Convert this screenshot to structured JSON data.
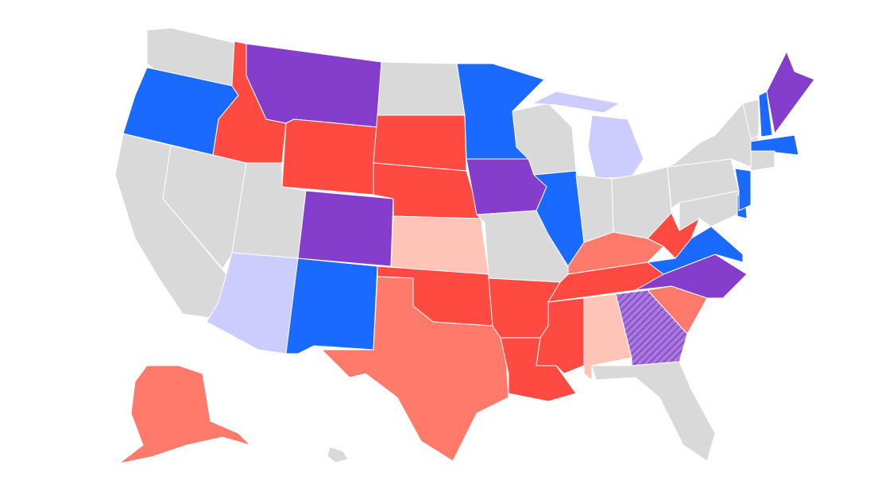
{
  "colors": {
    "blue": "#1a6aff",
    "red": "#ff4a42",
    "salmon": "#ff7a6a",
    "light_salmon": "#ffc4b8",
    "purple": "#853ecc",
    "light_purple": "#ccccff",
    "gray": "#d9d9d9"
  },
  "states": [
    {
      "id": "WA",
      "fill": "gray"
    },
    {
      "id": "OR",
      "fill": "blue"
    },
    {
      "id": "CA",
      "fill": "gray"
    },
    {
      "id": "NV",
      "fill": "gray"
    },
    {
      "id": "ID",
      "fill": "red"
    },
    {
      "id": "MT",
      "fill": "purple"
    },
    {
      "id": "WY",
      "fill": "red"
    },
    {
      "id": "UT",
      "fill": "gray"
    },
    {
      "id": "AZ",
      "fill": "light_purple"
    },
    {
      "id": "CO",
      "fill": "purple"
    },
    {
      "id": "NM",
      "fill": "blue"
    },
    {
      "id": "ND",
      "fill": "gray"
    },
    {
      "id": "SD",
      "fill": "red"
    },
    {
      "id": "NE",
      "fill": "red"
    },
    {
      "id": "KS",
      "fill": "light_salmon"
    },
    {
      "id": "OK",
      "fill": "red"
    },
    {
      "id": "TX",
      "fill": "salmon"
    },
    {
      "id": "MN",
      "fill": "blue"
    },
    {
      "id": "IA",
      "fill": "purple"
    },
    {
      "id": "MO",
      "fill": "gray"
    },
    {
      "id": "AR",
      "fill": "red"
    },
    {
      "id": "LA",
      "fill": "red"
    },
    {
      "id": "WI",
      "fill": "gray"
    },
    {
      "id": "IL",
      "fill": "blue"
    },
    {
      "id": "MI",
      "fill": "light_purple"
    },
    {
      "id": "MI-UP",
      "fill": "light_purple"
    },
    {
      "id": "IN",
      "fill": "gray"
    },
    {
      "id": "OH",
      "fill": "gray"
    },
    {
      "id": "KY",
      "fill": "salmon"
    },
    {
      "id": "TN",
      "fill": "red"
    },
    {
      "id": "MS",
      "fill": "red"
    },
    {
      "id": "AL",
      "fill": "light_salmon"
    },
    {
      "id": "GA",
      "fill": "purple-hatched"
    },
    {
      "id": "FL",
      "fill": "gray"
    },
    {
      "id": "SC",
      "fill": "salmon"
    },
    {
      "id": "NC",
      "fill": "purple"
    },
    {
      "id": "VA",
      "fill": "blue"
    },
    {
      "id": "WV",
      "fill": "red"
    },
    {
      "id": "PA",
      "fill": "gray"
    },
    {
      "id": "NY",
      "fill": "gray"
    },
    {
      "id": "MD",
      "fill": "gray"
    },
    {
      "id": "DE",
      "fill": "blue"
    },
    {
      "id": "NJ",
      "fill": "blue"
    },
    {
      "id": "VT",
      "fill": "gray"
    },
    {
      "id": "NH",
      "fill": "blue"
    },
    {
      "id": "ME",
      "fill": "purple"
    },
    {
      "id": "MA",
      "fill": "blue"
    },
    {
      "id": "CT",
      "fill": "gray"
    },
    {
      "id": "AK",
      "fill": "salmon"
    },
    {
      "id": "HI",
      "fill": "gray"
    }
  ]
}
